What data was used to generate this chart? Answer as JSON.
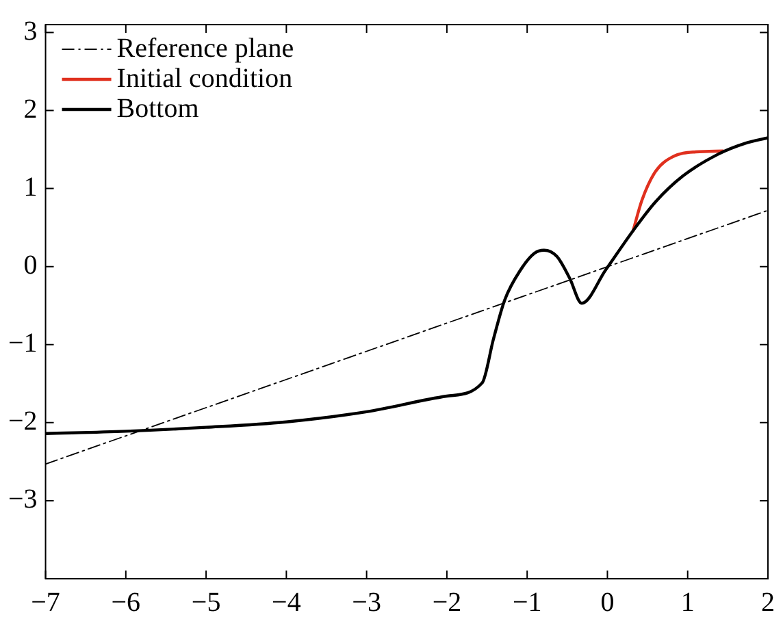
{
  "chart_data": {
    "type": "line",
    "xlim": [
      -7,
      2
    ],
    "ylim": [
      -4,
      3.1
    ],
    "xticks": [
      -7,
      -6,
      -5,
      -4,
      -3,
      -2,
      -1,
      0,
      1,
      2
    ],
    "yticks": [
      -3,
      -2,
      -1,
      0,
      1,
      2,
      3
    ],
    "grid": false,
    "legend": "top left",
    "marker": "none",
    "series": [
      {
        "name": "Reference plane",
        "color": "#000000",
        "line_style": "dashed",
        "x": [
          -7,
          2
        ],
        "values": [
          -2.53,
          0.72
        ]
      },
      {
        "name": "Initial condition",
        "color": "#e0301e",
        "line_style": "solid",
        "x": [
          0.32,
          0.43,
          0.6,
          0.82,
          1.1,
          1.44
        ],
        "values": [
          0.46,
          0.85,
          1.22,
          1.41,
          1.47,
          1.48
        ]
      },
      {
        "name": "Bottom",
        "color": "#000000",
        "line_style": "solid",
        "x": [
          -7,
          -6,
          -5,
          -4,
          -3,
          -2,
          -1.56,
          -1.42,
          -1.28,
          -1.08,
          -0.91,
          -0.79,
          -0.63,
          -0.47,
          -0.32,
          -0.02,
          0.32,
          0.6,
          0.94,
          1.38,
          1.72,
          2
        ],
        "values": [
          -2.14,
          -2.11,
          -2.06,
          -1.99,
          -1.86,
          -1.66,
          -1.49,
          -0.93,
          -0.43,
          -0.04,
          0.17,
          0.21,
          0.13,
          -0.15,
          -0.47,
          -0.04,
          0.46,
          0.83,
          1.16,
          1.44,
          1.58,
          1.65
        ]
      }
    ]
  }
}
